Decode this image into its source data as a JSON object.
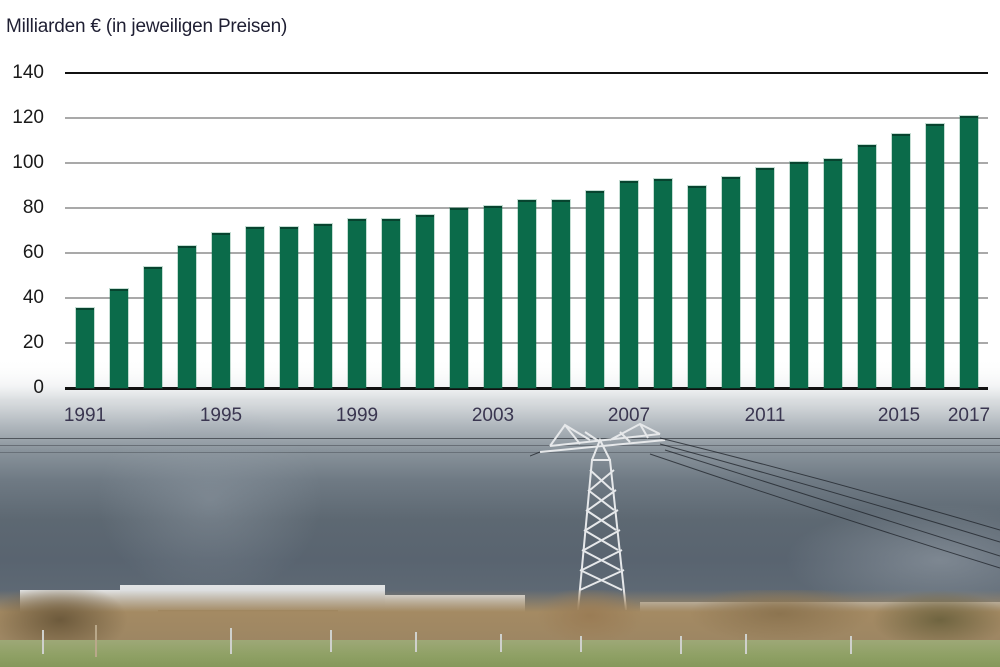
{
  "chart_data": {
    "type": "bar",
    "title": "Milliarden  € (in jeweiligen Preisen)",
    "xlabel": "",
    "ylabel": "Milliarden €",
    "ylim": [
      0,
      140
    ],
    "yticks": [
      0,
      20,
      40,
      60,
      80,
      100,
      120,
      140
    ],
    "grid": true,
    "legend": null,
    "bar_color": "#0b6b4a",
    "categories": [
      "1991",
      "1992",
      "1993",
      "1994",
      "1995",
      "1996",
      "1997",
      "1998",
      "1999",
      "2000",
      "2001",
      "2002",
      "2003",
      "2004",
      "2005",
      "2006",
      "2007",
      "2008",
      "2009",
      "2010",
      "2011",
      "2012",
      "2013",
      "2014",
      "2015",
      "2016",
      "2017"
    ],
    "values": [
      35.5,
      44,
      54,
      63,
      69,
      71.5,
      71.5,
      73,
      75,
      75,
      77,
      80,
      81,
      83.5,
      83.5,
      87.5,
      92,
      93,
      90,
      94,
      98,
      100.5,
      102,
      108,
      113,
      117.5,
      121
    ],
    "xtick_labels": [
      "1991",
      "1995",
      "1999",
      "2003",
      "2007",
      "2011",
      "2015",
      "2017"
    ]
  },
  "background": {
    "description": "Photo of overcast sky with electricity pylon, industrial building, bushes and grass field"
  }
}
